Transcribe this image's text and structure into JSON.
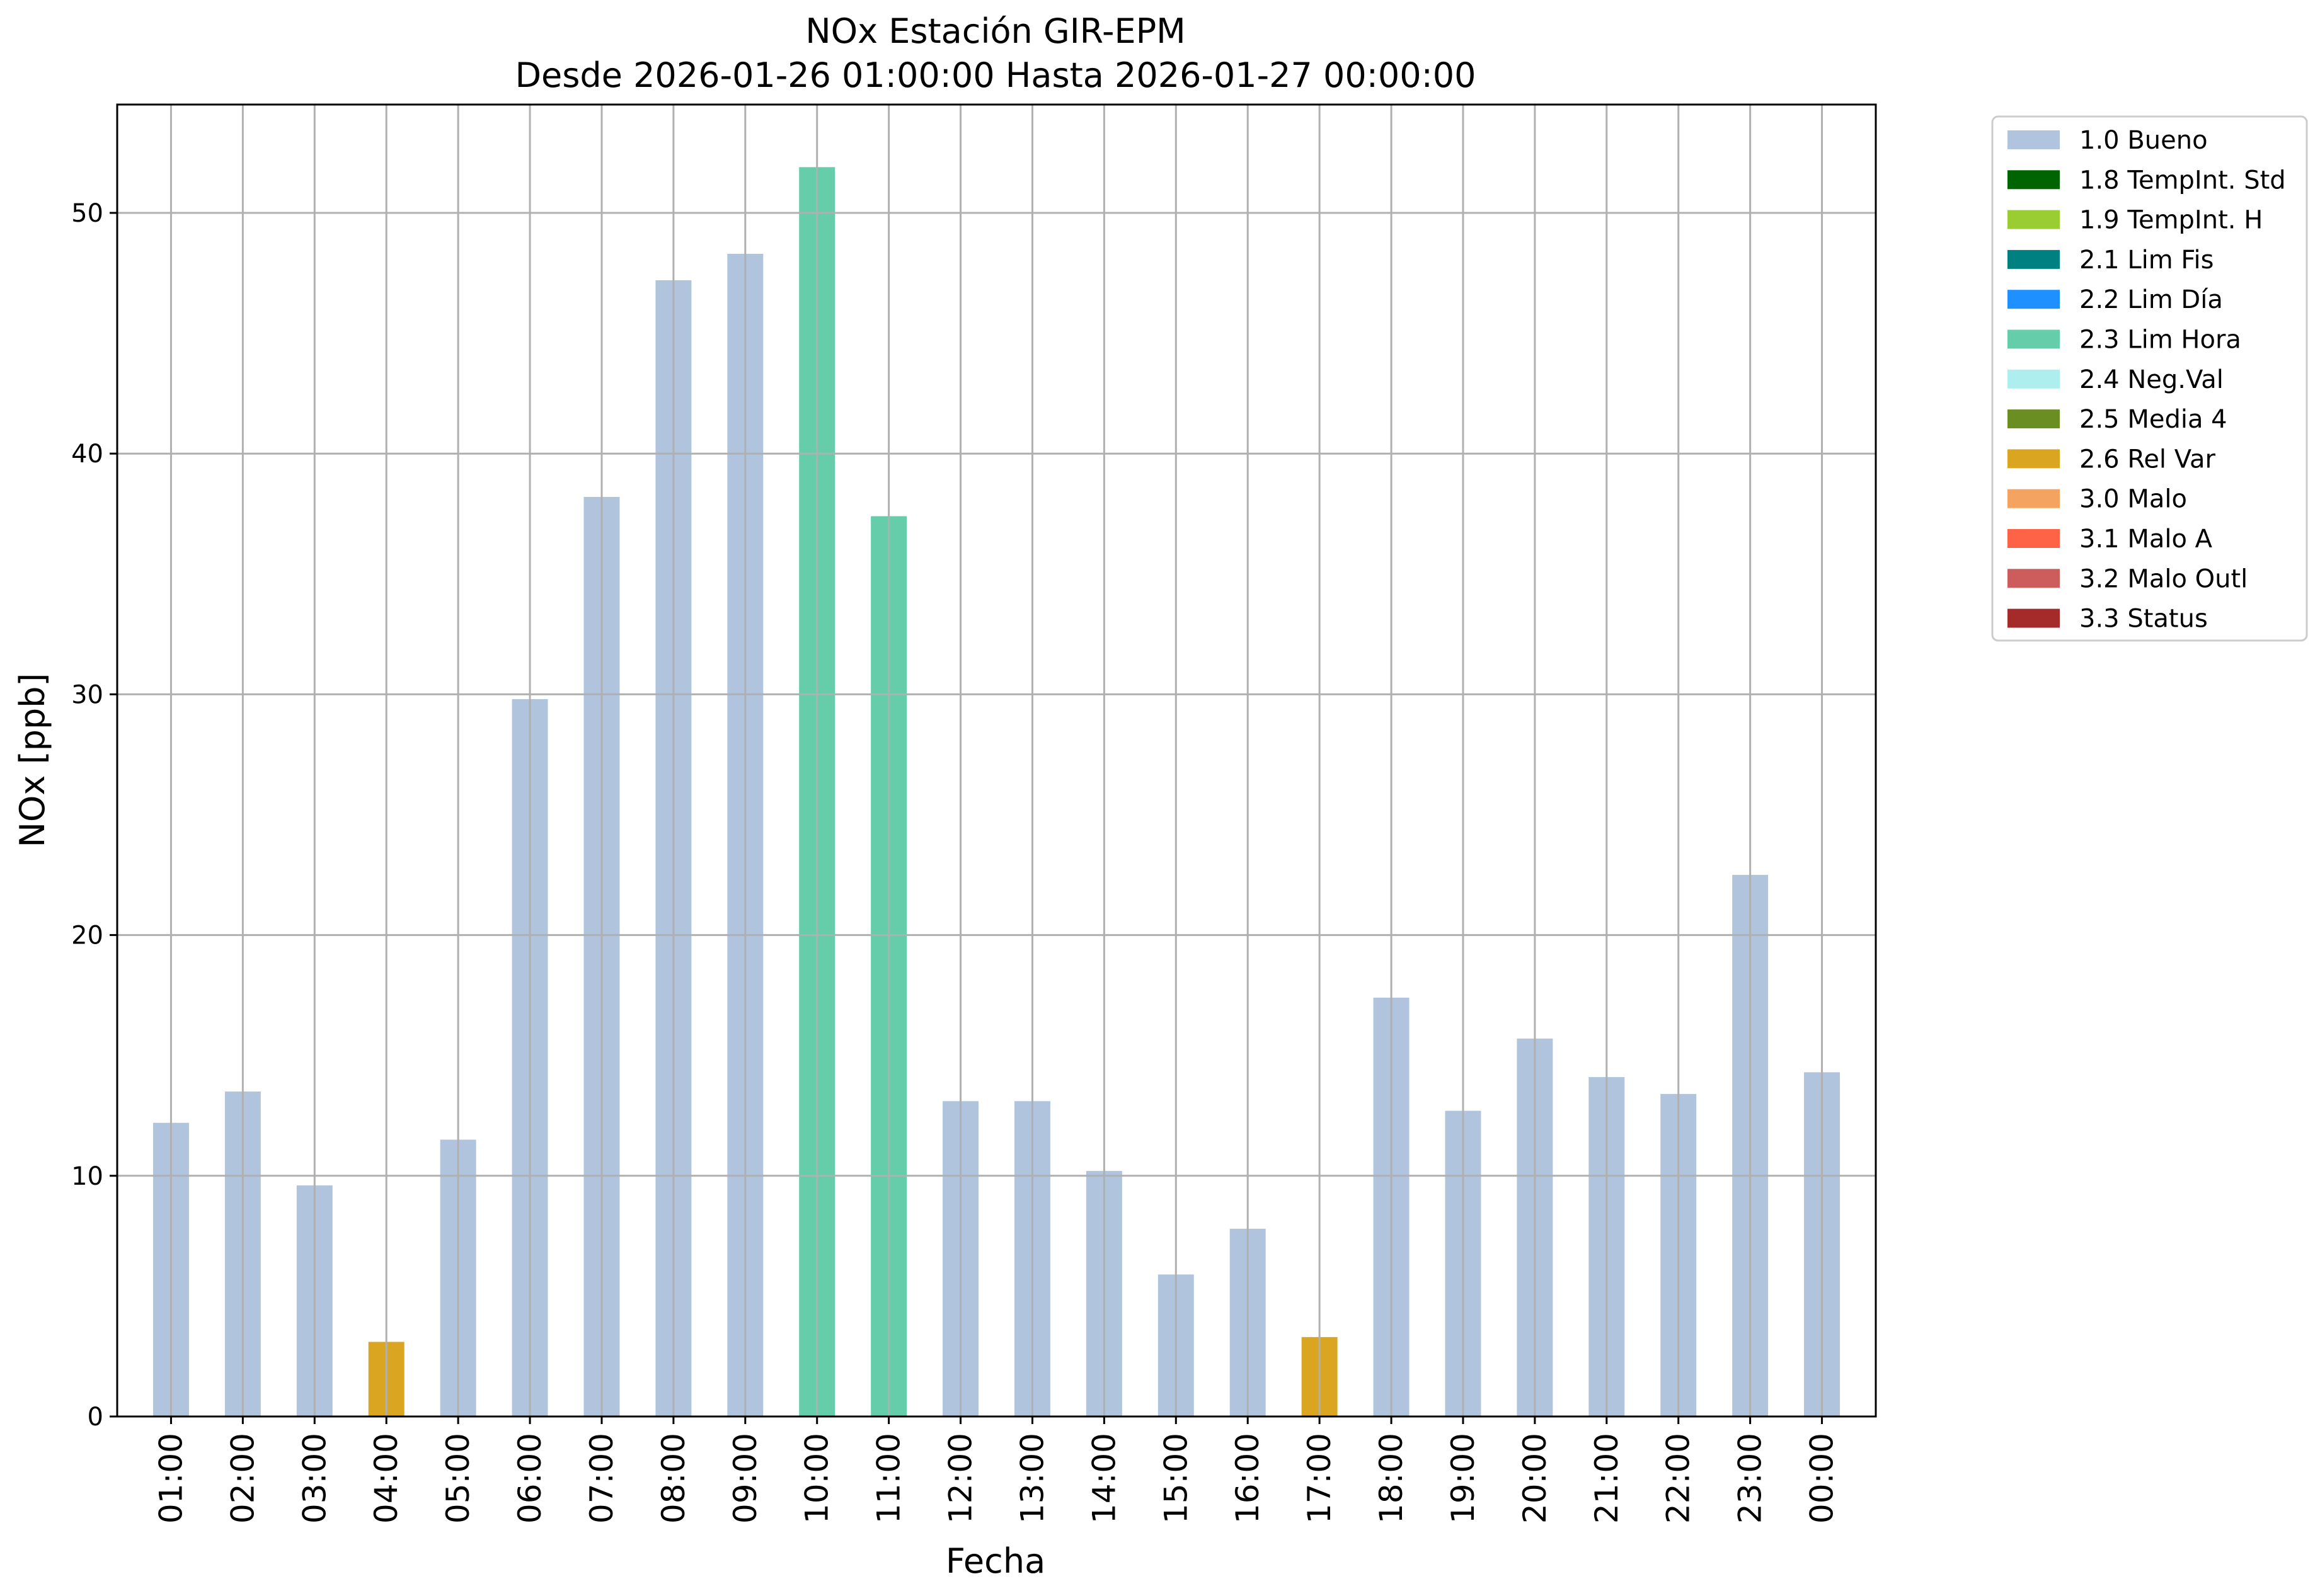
{
  "chart_data": {
    "type": "bar",
    "title": "NOx Estación GIR-EPM",
    "subtitle": "Desde 2026-01-26 01:00:00 Hasta 2026-01-27 00:00:00",
    "xlabel": "Fecha",
    "ylabel": "NOx [ppb]",
    "ylim": [
      0,
      54.5
    ],
    "yticks": [
      0,
      10,
      20,
      30,
      40,
      50
    ],
    "grid": true,
    "legend_position": "outside top-right",
    "categories": [
      "01:00",
      "02:00",
      "03:00",
      "04:00",
      "05:00",
      "06:00",
      "07:00",
      "08:00",
      "09:00",
      "10:00",
      "11:00",
      "12:00",
      "13:00",
      "14:00",
      "15:00",
      "16:00",
      "17:00",
      "18:00",
      "19:00",
      "20:00",
      "21:00",
      "22:00",
      "23:00",
      "00:00"
    ],
    "values": [
      12.2,
      13.5,
      9.6,
      3.1,
      11.5,
      29.8,
      38.2,
      47.2,
      48.3,
      51.9,
      37.4,
      13.1,
      13.1,
      10.2,
      5.9,
      7.8,
      3.3,
      17.4,
      12.7,
      15.7,
      14.1,
      13.4,
      22.5,
      14.3
    ],
    "flags": [
      "1.0",
      "1.0",
      "1.0",
      "2.6",
      "1.0",
      "1.0",
      "1.0",
      "1.0",
      "1.0",
      "2.3",
      "2.3",
      "1.0",
      "1.0",
      "1.0",
      "1.0",
      "1.0",
      "2.6",
      "1.0",
      "1.0",
      "1.0",
      "1.0",
      "1.0",
      "1.0",
      "1.0"
    ],
    "legend": [
      {
        "code": "1.0",
        "label": "1.0 Bueno",
        "color": "#b0c4de"
      },
      {
        "code": "1.8",
        "label": "1.8 TempInt. Std",
        "color": "#006400"
      },
      {
        "code": "1.9",
        "label": "1.9 TempInt. H",
        "color": "#9acd32"
      },
      {
        "code": "2.1",
        "label": "2.1 Lim Fis",
        "color": "#008080"
      },
      {
        "code": "2.2",
        "label": "2.2 Lim Día",
        "color": "#1e90ff"
      },
      {
        "code": "2.3",
        "label": "2.3 Lim Hora",
        "color": "#66cdaa"
      },
      {
        "code": "2.4",
        "label": "2.4 Neg.Val",
        "color": "#afeeee"
      },
      {
        "code": "2.5",
        "label": "2.5 Media 4",
        "color": "#6b8e23"
      },
      {
        "code": "2.6",
        "label": "2.6 Rel Var",
        "color": "#daa520"
      },
      {
        "code": "3.0",
        "label": "3.0 Malo",
        "color": "#f4a460"
      },
      {
        "code": "3.1",
        "label": "3.1 Malo A",
        "color": "#ff6347"
      },
      {
        "code": "3.2",
        "label": "3.2 Malo Outl",
        "color": "#cd5c5c"
      },
      {
        "code": "3.3",
        "label": "3.3 Status",
        "color": "#a52a2a"
      }
    ]
  }
}
